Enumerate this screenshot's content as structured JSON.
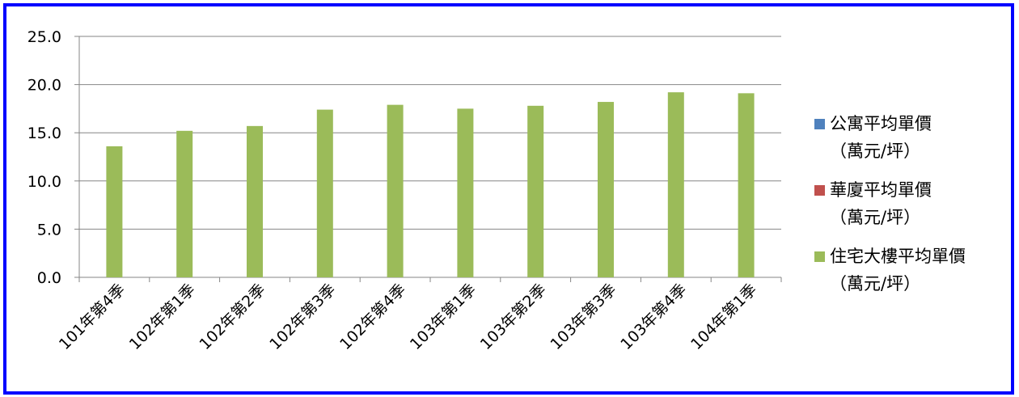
{
  "chart_data": {
    "type": "bar",
    "categories": [
      "101年第4季",
      "102年第1季",
      "102年第2季",
      "102年第3季",
      "102年第4季",
      "103年第1季",
      "103年第2季",
      "103年第3季",
      "103年第4季",
      "104年第1季"
    ],
    "series": [
      {
        "name": "公寓平均單價（萬元/坪）",
        "color": "#4f81bd",
        "values": [
          null,
          null,
          null,
          null,
          null,
          null,
          null,
          null,
          null,
          null
        ]
      },
      {
        "name": "華廈平均單價（萬元/坪）",
        "color": "#c0504d",
        "values": [
          null,
          null,
          null,
          null,
          null,
          null,
          null,
          null,
          null,
          null
        ]
      },
      {
        "name": "住宅大樓平均單價（萬元/坪）",
        "color": "#9bbb59",
        "values": [
          13.6,
          15.2,
          15.7,
          17.4,
          17.9,
          17.5,
          17.8,
          18.2,
          19.2,
          19.1
        ]
      }
    ],
    "ylim": [
      0,
      25
    ],
    "yticks": [
      "0.0",
      "5.0",
      "10.0",
      "15.0",
      "20.0",
      "25.0"
    ],
    "grid": true,
    "legend_position": "right",
    "legend": [
      {
        "line1": "公寓平均單價",
        "line2": "（萬元/坪）"
      },
      {
        "line1": "華廈平均單價",
        "line2": "（萬元/坪）"
      },
      {
        "line1": "住宅大樓平均單價",
        "line2": "（萬元/坪）"
      }
    ],
    "frame_color": "#0000ff"
  }
}
